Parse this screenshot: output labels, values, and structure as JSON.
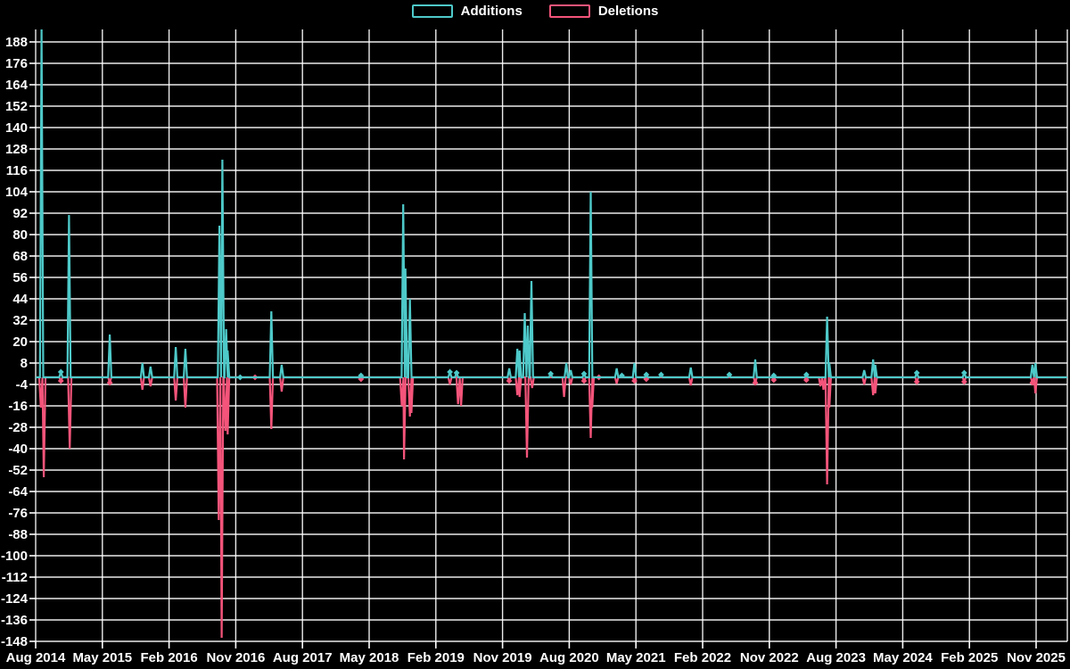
{
  "chart_data": {
    "type": "line",
    "title": "",
    "background_color": "#000000",
    "grid": {
      "color": "#ffffff",
      "vertical_every_months": 9,
      "horizontal_every_units": 12
    },
    "legend": [
      {
        "name": "Additions",
        "color": "#4ec9c9"
      },
      {
        "name": "Deletions",
        "color": "#f4547a"
      }
    ],
    "y_axis": {
      "min": -154,
      "max": 196,
      "tick_step": 12,
      "ticks": [
        "188",
        "176",
        "164",
        "152",
        "140",
        "128",
        "116",
        "104",
        "92",
        "80",
        "68",
        "56",
        "44",
        "32",
        "20",
        "8",
        "-4",
        "-16",
        "-28",
        "-40",
        "-52",
        "-64",
        "-76",
        "-88",
        "-100",
        "-112",
        "-124",
        "-136",
        "-148"
      ]
    },
    "x_axis": {
      "unit": "months since Aug 2014",
      "tick_interval_months": 9,
      "ticks": [
        "Aug 2014",
        "May 2015",
        "Feb 2016",
        "Nov 2016",
        "Aug 2017",
        "May 2018",
        "Feb 2019",
        "Nov 2019",
        "Aug 2020",
        "May 2021",
        "Feb 2022",
        "Nov 2022",
        "Aug 2023",
        "May 2024",
        "Feb 2025",
        "Nov 2025"
      ]
    },
    "baseline_value": 0,
    "series": [
      {
        "name": "Additions",
        "color": "#4ec9c9",
        "spikes": [
          [
            0.8,
            195
          ],
          [
            3.4,
            3
          ],
          [
            4.5,
            91
          ],
          [
            10,
            24
          ],
          [
            14.4,
            8
          ],
          [
            15.5,
            6
          ],
          [
            18.9,
            17
          ],
          [
            20.2,
            16
          ],
          [
            24.8,
            85
          ],
          [
            25.2,
            122
          ],
          [
            25.7,
            27
          ],
          [
            25.9,
            15
          ],
          [
            27.6,
            0
          ],
          [
            31.8,
            37
          ],
          [
            33.2,
            7
          ],
          [
            43.9,
            1
          ],
          [
            49.6,
            97
          ],
          [
            49.9,
            61
          ],
          [
            50.5,
            44
          ],
          [
            55.9,
            3
          ],
          [
            56.8,
            2.5
          ],
          [
            63.9,
            5
          ],
          [
            65,
            16
          ],
          [
            65.3,
            15
          ],
          [
            66,
            36
          ],
          [
            66.4,
            29
          ],
          [
            66.9,
            54
          ],
          [
            69.5,
            2
          ],
          [
            71.6,
            8
          ],
          [
            72.2,
            4
          ],
          [
            74,
            2
          ],
          [
            74.9,
            104
          ],
          [
            78.4,
            5
          ],
          [
            79.1,
            1
          ],
          [
            80.8,
            8
          ],
          [
            82.4,
            1.5
          ],
          [
            84.4,
            1.5
          ],
          [
            88.4,
            5.5
          ],
          [
            93.6,
            1.5
          ],
          [
            97.1,
            10
          ],
          [
            99.6,
            1
          ],
          [
            104,
            1.5
          ],
          [
            106.8,
            34
          ],
          [
            107.1,
            8
          ],
          [
            111.8,
            4
          ],
          [
            113,
            10
          ],
          [
            113.3,
            7
          ],
          [
            118.9,
            2.5
          ],
          [
            125.3,
            2.5
          ],
          [
            134.5,
            7
          ],
          [
            134.9,
            8
          ]
        ]
      },
      {
        "name": "Deletions",
        "color": "#f4547a",
        "spikes": [
          [
            0.7,
            -17
          ],
          [
            1.1,
            -56
          ],
          [
            3.4,
            -2
          ],
          [
            4.6,
            -40
          ],
          [
            10,
            -3
          ],
          [
            14.4,
            -7
          ],
          [
            15.5,
            -5
          ],
          [
            18.9,
            -13
          ],
          [
            20.2,
            -17
          ],
          [
            24.7,
            -80
          ],
          [
            25.1,
            -146
          ],
          [
            25.6,
            -30
          ],
          [
            25.9,
            -32
          ],
          [
            29.6,
            0
          ],
          [
            31.8,
            -29
          ],
          [
            33.2,
            -8
          ],
          [
            43.9,
            -1
          ],
          [
            49.4,
            -16
          ],
          [
            49.7,
            -46
          ],
          [
            50.5,
            -22
          ],
          [
            50.7,
            -20
          ],
          [
            55.9,
            -4
          ],
          [
            57,
            -15
          ],
          [
            57.4,
            -16
          ],
          [
            63.9,
            -2
          ],
          [
            65,
            -10
          ],
          [
            65.3,
            -11
          ],
          [
            66.3,
            -45
          ],
          [
            67,
            -6
          ],
          [
            71.3,
            -11
          ],
          [
            72.2,
            -4
          ],
          [
            74,
            -2
          ],
          [
            74.9,
            -34
          ],
          [
            75.1,
            -17
          ],
          [
            76,
            0
          ],
          [
            78.4,
            -3.5
          ],
          [
            80.8,
            -2
          ],
          [
            82.4,
            -1
          ],
          [
            88.4,
            -4.5
          ],
          [
            97.1,
            -3
          ],
          [
            99.6,
            -1.5
          ],
          [
            104,
            -1.5
          ],
          [
            105.9,
            -5
          ],
          [
            106.3,
            -7
          ],
          [
            106.8,
            -60
          ],
          [
            107.1,
            -17
          ],
          [
            111.8,
            -4
          ],
          [
            113,
            -10
          ],
          [
            113.3,
            -9
          ],
          [
            118.9,
            -2.5
          ],
          [
            125.3,
            -2.5
          ],
          [
            134.5,
            -3
          ],
          [
            134.9,
            -9
          ]
        ]
      }
    ]
  }
}
